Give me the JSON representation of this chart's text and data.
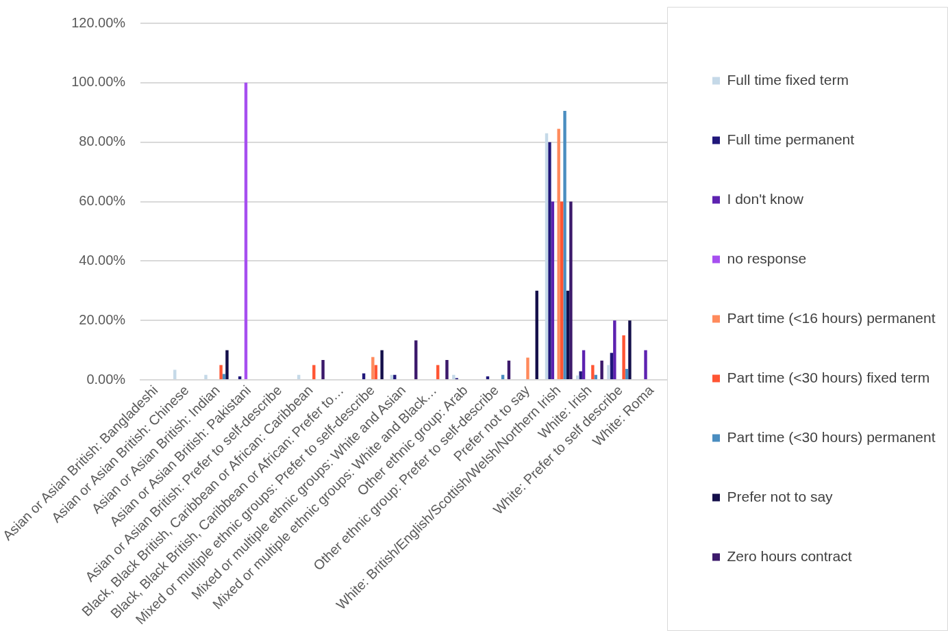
{
  "chart_data": {
    "type": "bar",
    "categories": [
      "Asian or Asian British: Bangladeshi",
      "Asian or Asian British: Chinese",
      "Asian or Asian British: Indian",
      "Asian or Asian British: Pakistani",
      "Asian or Asian British: Prefer to self-describe",
      "Black, Black British, Caribbean or African: Caribbean",
      "Black, Black British, Caribbean or African: Prefer to…",
      "Mixed or multiple ethnic groups: Prefer to self-describe",
      "Mixed or multiple ethnic groups: White and Asian",
      "Mixed or multiple ethnic groups: White and Black…",
      "Other ethnic group: Arab",
      "Other ethnic group: Prefer to self-describe",
      "Prefer not to say",
      "White: British/English/Scottish/Welsh/Northern Irish",
      "White: Irish",
      "White: Prefer to self describe",
      "White: Roma"
    ],
    "series": [
      {
        "name": "Full time fixed term",
        "color": "#c5d9e8",
        "values": [
          0,
          3.4,
          1.7,
          0,
          0,
          1.7,
          0,
          0,
          1.7,
          0,
          1.7,
          0,
          0,
          83,
          1.5,
          5,
          0
        ]
      },
      {
        "name": "Full time permanent",
        "color": "#20177a",
        "values": [
          0,
          0,
          0,
          1.2,
          0,
          0,
          0,
          2.2,
          1.7,
          0,
          0.6,
          1.2,
          0,
          80,
          2.9,
          9.1,
          0
        ]
      },
      {
        "name": "I don't know",
        "color": "#5d22b0",
        "values": [
          0,
          0,
          0,
          0,
          0,
          0,
          0,
          0,
          0,
          0,
          0,
          0,
          0,
          60,
          10,
          20,
          10
        ]
      },
      {
        "name": "no response",
        "color": "#a64ff0",
        "values": [
          0,
          0,
          0,
          100,
          0,
          0,
          0,
          0,
          0,
          0,
          0,
          0,
          0,
          0,
          0,
          0,
          0
        ]
      },
      {
        "name": "Part time (<16 hours) permanent",
        "color": "#ff8a5c",
        "values": [
          0,
          0,
          0,
          0,
          0,
          0,
          0,
          7.7,
          0,
          0,
          0,
          0,
          7.5,
          84.5,
          0,
          0,
          0
        ]
      },
      {
        "name": "Part time (<30 hours) fixed term",
        "color": "#ff5533",
        "values": [
          0,
          0,
          5,
          0,
          0,
          5,
          0,
          5,
          0,
          5,
          0,
          0,
          0,
          60,
          5,
          15,
          0
        ]
      },
      {
        "name": "Part time (<30 hours) permanent",
        "color": "#4a8dc0",
        "values": [
          0,
          0,
          2,
          0,
          0,
          0,
          0,
          0,
          0,
          0,
          0,
          1.7,
          0,
          90.5,
          1.7,
          3.7,
          0
        ]
      },
      {
        "name": "Prefer not to say",
        "color": "#140f4a",
        "values": [
          0,
          0,
          10,
          0,
          0,
          0,
          0,
          10,
          0,
          0,
          0,
          0,
          30,
          30,
          0,
          20,
          0
        ]
      },
      {
        "name": "Zero hours contract",
        "color": "#3c1a6b",
        "values": [
          0,
          0,
          0,
          0,
          0,
          6.7,
          0,
          0,
          13.3,
          6.7,
          0,
          6.5,
          0,
          60,
          6.5,
          0,
          0
        ]
      }
    ],
    "ylim": [
      0,
      120
    ],
    "yticks": [
      {
        "value": 0,
        "label": "0.00%"
      },
      {
        "value": 20,
        "label": "20.00%"
      },
      {
        "value": 40,
        "label": "40.00%"
      },
      {
        "value": 60,
        "label": "60.00%"
      },
      {
        "value": 80,
        "label": "80.00%"
      },
      {
        "value": 100,
        "label": "100.00%"
      },
      {
        "value": 120,
        "label": "120.00%"
      }
    ],
    "grid": "y",
    "legend": "right"
  }
}
